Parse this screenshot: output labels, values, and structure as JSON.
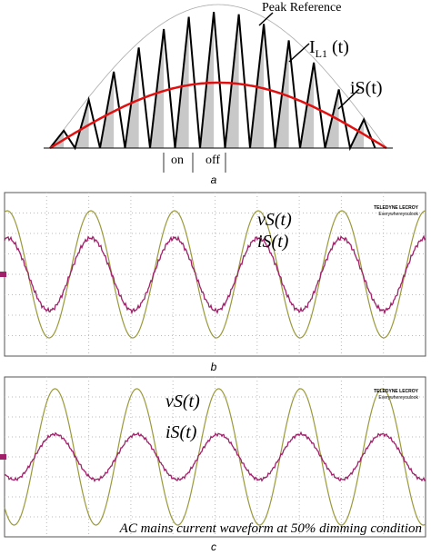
{
  "panel_a": {
    "peak_label": "Peak Reference",
    "inductor_label": "I",
    "inductor_sub": "L1",
    "inductor_suffix": " (t)",
    "source_current_label": "iS(t)",
    "on_label": "on",
    "off_label": "off",
    "caption": "a"
  },
  "panel_b": {
    "logo_brand": "TELEDYNE LECROY",
    "logo_tagline": "Everywhereyoulook",
    "voltage_label": "vS(t)",
    "current_label": "iS(t)",
    "caption": "b"
  },
  "panel_c": {
    "logo_brand": "TELEDYNE LECROY",
    "logo_tagline": "Everywhereyoulook",
    "voltage_label": "vS(t)",
    "current_label": "iS(t)",
    "annotation": "AC mains current waveform at 50% dimming condition",
    "caption": "c"
  }
}
